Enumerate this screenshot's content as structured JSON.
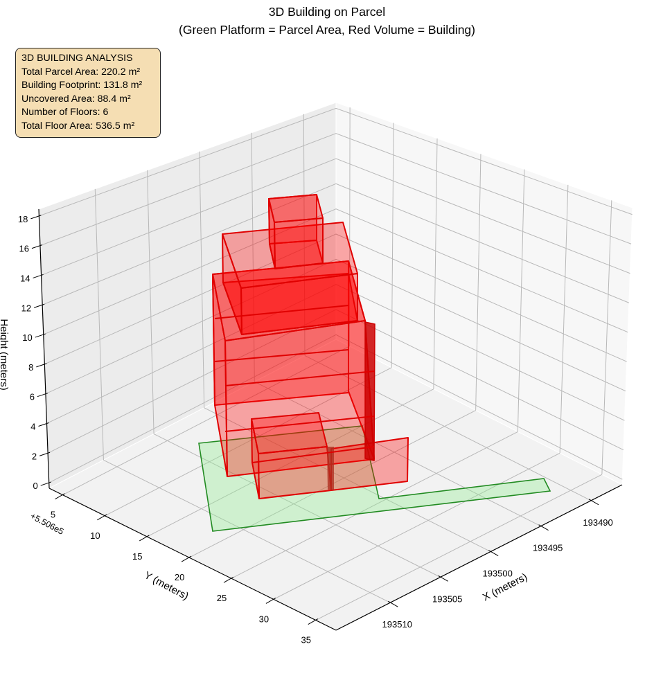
{
  "chart_data": {
    "type": "3d-polygon",
    "title": "3D Building on Parcel",
    "subtitle": "(Green Platform = Parcel Area, Red Volume = Building)",
    "xlabel": "X (meters)",
    "ylabel": "Y (meters)",
    "zlabel": "Height (meters)",
    "y_offset_label": "+5.506e5",
    "x_ticks": [
      "193490",
      "193495",
      "193500",
      "193505",
      "193510"
    ],
    "x_tick_values": [
      193490,
      193495,
      193500,
      193505,
      193510
    ],
    "y_ticks": [
      "5",
      "10",
      "15",
      "20",
      "25",
      "30",
      "35"
    ],
    "y_tick_values": [
      5,
      10,
      15,
      20,
      25,
      30,
      35
    ],
    "z_ticks": [
      "0",
      "2",
      "4",
      "6",
      "8",
      "10",
      "12",
      "14",
      "16",
      "18"
    ],
    "z_tick_values": [
      0,
      2,
      4,
      6,
      8,
      10,
      12,
      14,
      16,
      18
    ],
    "xlim": [
      193486.9,
      193515.4
    ],
    "ylim": [
      3.4,
      37.4
    ],
    "zlim": [
      -0.37,
      18.46
    ],
    "grid": true,
    "series": [
      {
        "name": "Parcel Area",
        "color": "#90ee90",
        "edge": "#228b22"
      },
      {
        "name": "Building",
        "color": "#ff0000",
        "edge": "#e00000",
        "floors": 6
      }
    ]
  },
  "info_box": {
    "lines": [
      "3D BUILDING ANALYSIS",
      "Total Parcel Area: 220.2 m²",
      "Building Footprint: 131.8 m²",
      "Uncovered Area: 88.4 m²",
      "Number of Floors: 6",
      "Total Floor Area: 536.5 m²"
    ]
  }
}
